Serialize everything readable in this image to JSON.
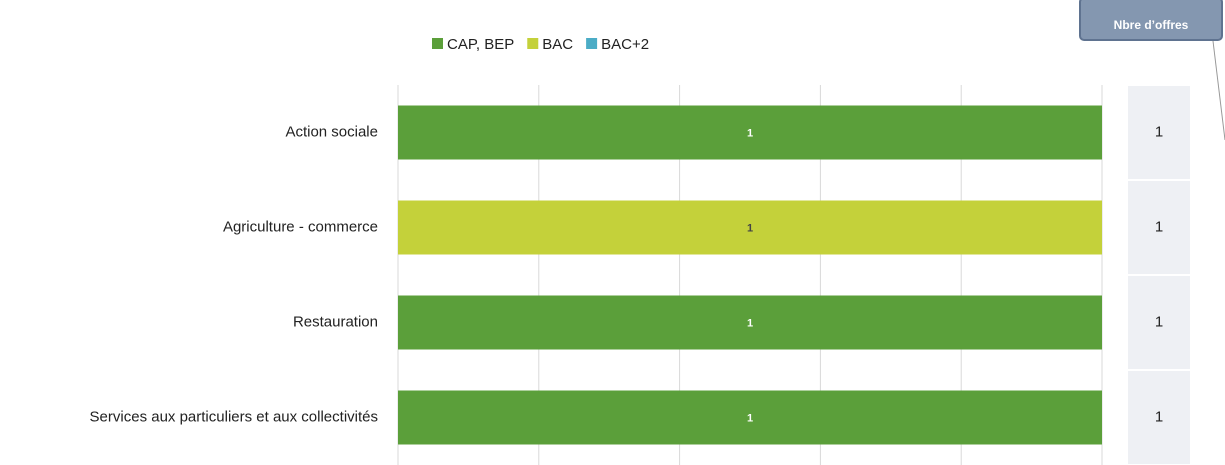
{
  "chart_data": {
    "type": "stacked_barh",
    "categories": [
      "Action sociale",
      "Agriculture - commerce",
      "Restauration",
      "Services aux particuliers et aux collectivités"
    ],
    "series": [
      {
        "name": "CAP, BEP",
        "color": "#5b9f3a",
        "label_color": "#ffffff",
        "values": [
          1,
          0,
          1,
          1
        ]
      },
      {
        "name": "BAC",
        "color": "#c4d13a",
        "label_color": "#444444",
        "values": [
          0,
          1,
          0,
          0
        ]
      },
      {
        "name": "BAC+2",
        "color": "#4bacc6",
        "label_color": "#ffffff",
        "values": [
          0,
          0,
          0,
          0
        ]
      }
    ],
    "xlim": [
      0,
      1
    ],
    "xticks": [
      0,
      0.2,
      0.4,
      0.6,
      0.8,
      1
    ],
    "grid": true,
    "tick_labels": false,
    "legend": "top",
    "offers_header": "Nbre d’offres",
    "offers": [
      1,
      1,
      1,
      1
    ]
  }
}
